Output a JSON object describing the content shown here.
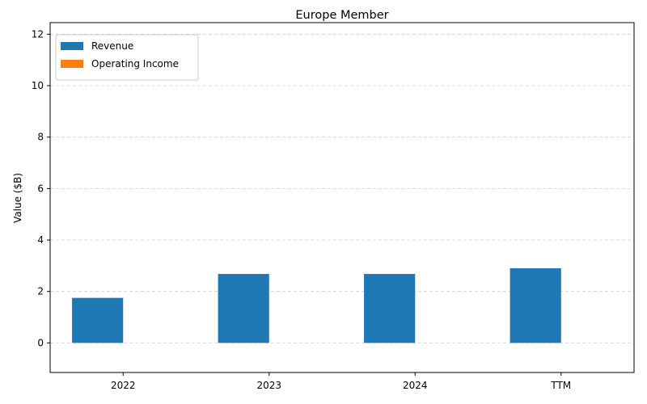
{
  "chart_data": {
    "type": "bar",
    "title": "Europe Member",
    "xlabel": "",
    "ylabel": "Value ($B)",
    "categories": [
      "2022",
      "2023",
      "2024",
      "TTM"
    ],
    "series": [
      {
        "name": "Revenue",
        "values": [
          1.75,
          2.68,
          2.68,
          2.9
        ],
        "color": "#1f77b4"
      },
      {
        "name": "Operating Income",
        "values": [
          0,
          0,
          0,
          0
        ],
        "color": "#ff7f0e"
      }
    ],
    "ylim": [
      -1.15,
      12.45
    ],
    "yticks": [
      0,
      2,
      4,
      6,
      8,
      10,
      12
    ],
    "grid": "y-dashed",
    "legend_position": "top-left"
  }
}
